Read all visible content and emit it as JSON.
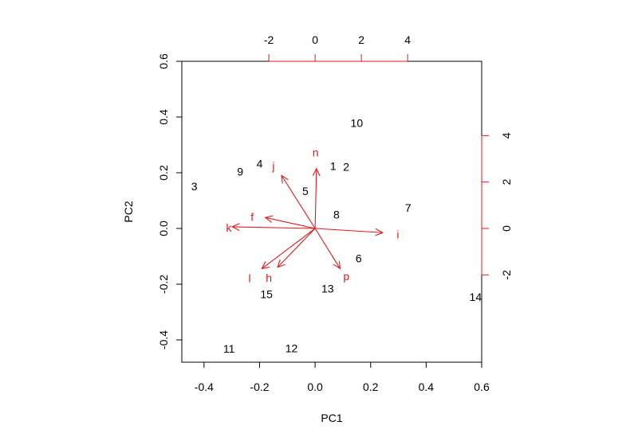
{
  "chart_data": {
    "type": "scatter",
    "title": "",
    "xlabel": "PC1",
    "ylabel": "PC2",
    "xlim": [
      -0.48,
      0.6
    ],
    "ylim": [
      -0.48,
      0.6
    ],
    "x_ticks": [
      "-0.4",
      "-0.2",
      "0.0",
      "0.2",
      "0.4",
      "0.6"
    ],
    "x_tick_values": [
      -0.4,
      -0.2,
      0.0,
      0.2,
      0.4,
      0.6
    ],
    "y_ticks": [
      "-0.4",
      "-0.2",
      "0.0",
      "0.2",
      "0.4",
      "0.6"
    ],
    "y_tick_values": [
      -0.4,
      -0.2,
      0.0,
      0.2,
      0.4,
      0.6
    ],
    "top_axis_ticks": [
      "-2",
      "0",
      "2",
      "4"
    ],
    "top_axis_values": [
      -2,
      0,
      2,
      4
    ],
    "right_axis_ticks": [
      "-2",
      "0",
      "2",
      "4"
    ],
    "right_axis_values": [
      -2,
      0,
      2,
      4
    ],
    "loading_scale": 12.0,
    "scores": [
      {
        "label": "1",
        "x": 0.065,
        "y": 0.225
      },
      {
        "label": "2",
        "x": 0.112,
        "y": 0.221
      },
      {
        "label": "3",
        "x": -0.435,
        "y": 0.152
      },
      {
        "label": "4",
        "x": -0.2,
        "y": 0.233
      },
      {
        "label": "5",
        "x": -0.035,
        "y": 0.135
      },
      {
        "label": "6",
        "x": 0.157,
        "y": -0.107
      },
      {
        "label": "7",
        "x": 0.335,
        "y": 0.075
      },
      {
        "label": "8",
        "x": 0.077,
        "y": 0.05
      },
      {
        "label": "9",
        "x": -0.27,
        "y": 0.205
      },
      {
        "label": "10",
        "x": 0.15,
        "y": 0.378
      },
      {
        "label": "11",
        "x": -0.31,
        "y": -0.432
      },
      {
        "label": "12",
        "x": -0.085,
        "y": -0.43
      },
      {
        "label": "13",
        "x": 0.045,
        "y": -0.215
      },
      {
        "label": "14",
        "x": 0.578,
        "y": -0.245
      },
      {
        "label": "15",
        "x": -0.175,
        "y": -0.235
      }
    ],
    "loadings": [
      {
        "label": "n",
        "x": 0.06,
        "y": 2.58,
        "lx": 0.02,
        "ly": 3.28
      },
      {
        "label": "j",
        "x": -1.45,
        "y": 2.28,
        "lx": -1.8,
        "ly": 2.7
      },
      {
        "label": "f",
        "x": -2.15,
        "y": 0.47,
        "lx": -2.72,
        "ly": 0.49
      },
      {
        "label": "k",
        "x": -3.58,
        "y": 0.07,
        "lx": -3.73,
        "ly": 0.04
      },
      {
        "label": "i",
        "x": 2.92,
        "y": -0.18,
        "lx": 3.58,
        "ly": -0.25
      },
      {
        "label": "l",
        "x": -2.3,
        "y": -1.73,
        "lx": -2.83,
        "ly": -2.15
      },
      {
        "label": "h",
        "x": -1.62,
        "y": -1.67,
        "lx": -2.0,
        "ly": -2.12
      },
      {
        "label": "p",
        "x": 1.08,
        "y": -1.73,
        "lx": 1.35,
        "ly": -2.05
      }
    ],
    "colors": {
      "scores": "#000000",
      "loadings": "#e31a1c",
      "axis": "#000000"
    }
  }
}
